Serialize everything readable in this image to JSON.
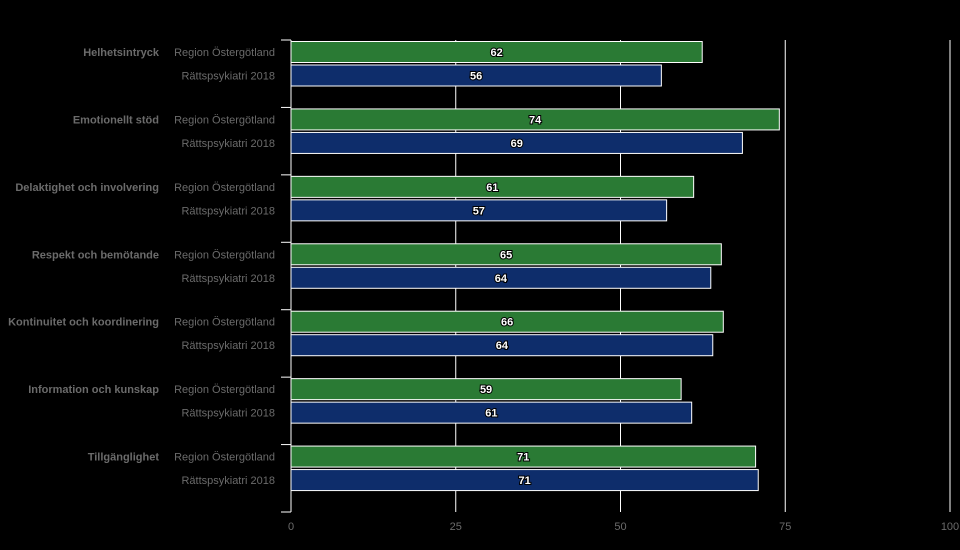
{
  "chart_data": {
    "type": "bar",
    "orientation": "horizontal",
    "categories": [
      "Helhetsintryck",
      "Emotionellt stöd",
      "Delaktighet och involvering",
      "Respekt och bemötande",
      "Kontinuitet och koordinering",
      "Information och kunskap",
      "Tillgänglighet"
    ],
    "series": [
      {
        "name": "Region Östergötland",
        "color": "#2a7a34",
        "values": [
          62.4,
          74.1,
          61.1,
          65.3,
          65.6,
          59.2,
          70.5
        ]
      },
      {
        "name": "Rättspsykiatri 2018",
        "color": "#0e2d6b",
        "values": [
          56.2,
          68.5,
          57.0,
          63.7,
          64.0,
          60.8,
          70.9
        ]
      }
    ],
    "data_labels": [
      [
        "62",
        "74",
        "61",
        "65",
        "66",
        "59",
        "71"
      ],
      [
        "56",
        "69",
        "57",
        "64",
        "64",
        "61",
        "71"
      ]
    ],
    "xlim": [
      0,
      100
    ],
    "x_ticks": [
      "0",
      "25",
      "50",
      "75",
      "100"
    ],
    "grid": true,
    "title": "",
    "xlabel": "",
    "ylabel": ""
  }
}
